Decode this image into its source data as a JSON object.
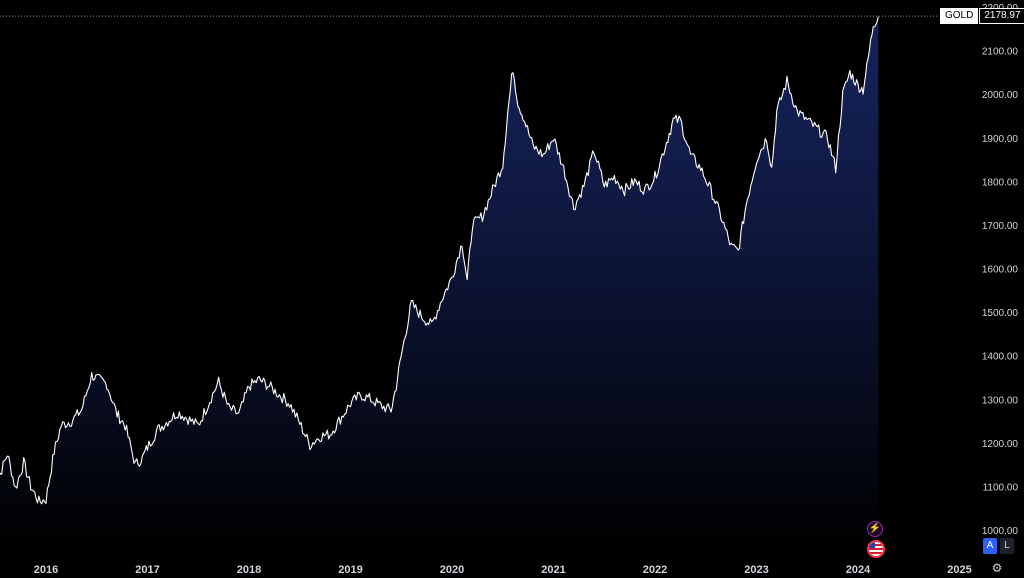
{
  "chart_data": {
    "type": "area",
    "symbol": "GOLD",
    "last_price": "2178.97",
    "y_ticks": [
      "2200.00",
      "2100.00",
      "2000.00",
      "1900.00",
      "1800.00",
      "1700.00",
      "1600.00",
      "1500.00",
      "1400.00",
      "1300.00",
      "1200.00",
      "1100.00",
      "1000.00"
    ],
    "x_ticks": [
      "2016",
      "2017",
      "2018",
      "2019",
      "2020",
      "2021",
      "2022",
      "2023",
      "2024",
      "2025"
    ],
    "ylim": [
      960,
      2200
    ],
    "grid": false,
    "line_color": "#ffffff",
    "fill_color": "#1a2a6e",
    "x": [
      2015.48,
      2015.55,
      2015.62,
      2015.7,
      2015.78,
      2015.85,
      2015.93,
      2016.0,
      2016.08,
      2016.15,
      2016.25,
      2016.35,
      2016.45,
      2016.52,
      2016.6,
      2016.7,
      2016.78,
      2016.88,
      2016.95,
      2017.0,
      2017.1,
      2017.2,
      2017.3,
      2017.4,
      2017.5,
      2017.6,
      2017.7,
      2017.8,
      2017.9,
      2018.0,
      2018.1,
      2018.2,
      2018.3,
      2018.4,
      2018.5,
      2018.6,
      2018.7,
      2018.8,
      2018.9,
      2019.0,
      2019.1,
      2019.2,
      2019.3,
      2019.4,
      2019.45,
      2019.5,
      2019.55,
      2019.6,
      2019.7,
      2019.8,
      2019.9,
      2020.0,
      2020.1,
      2020.15,
      2020.2,
      2020.3,
      2020.4,
      2020.5,
      2020.55,
      2020.6,
      2020.65,
      2020.7,
      2020.8,
      2020.9,
      2021.0,
      2021.1,
      2021.2,
      2021.3,
      2021.4,
      2021.5,
      2021.6,
      2021.7,
      2021.8,
      2021.9,
      2022.0,
      2022.1,
      2022.18,
      2022.25,
      2022.35,
      2022.45,
      2022.55,
      2022.65,
      2022.75,
      2022.82,
      2022.9,
      2023.0,
      2023.1,
      2023.15,
      2023.2,
      2023.3,
      2023.4,
      2023.5,
      2023.6,
      2023.7,
      2023.78,
      2023.85,
      2023.92,
      2024.0,
      2024.05,
      2024.1,
      2024.15,
      2024.2
    ],
    "y": [
      1095,
      1130,
      1175,
      1095,
      1155,
      1100,
      1065,
      1070,
      1180,
      1240,
      1250,
      1275,
      1355,
      1345,
      1335,
      1265,
      1240,
      1150,
      1165,
      1190,
      1230,
      1250,
      1270,
      1255,
      1240,
      1290,
      1340,
      1280,
      1265,
      1330,
      1345,
      1330,
      1310,
      1290,
      1245,
      1195,
      1215,
      1220,
      1255,
      1290,
      1310,
      1300,
      1285,
      1275,
      1330,
      1400,
      1460,
      1520,
      1490,
      1470,
      1530,
      1580,
      1660,
      1570,
      1700,
      1720,
      1780,
      1840,
      1960,
      2060,
      1980,
      1950,
      1880,
      1860,
      1900,
      1830,
      1740,
      1790,
      1870,
      1790,
      1810,
      1780,
      1800,
      1780,
      1810,
      1880,
      1940,
      1940,
      1860,
      1830,
      1780,
      1720,
      1650,
      1640,
      1750,
      1850,
      1900,
      1830,
      1960,
      2030,
      1960,
      1940,
      1920,
      1900,
      1830,
      2000,
      2050,
      2020,
      2010,
      2080,
      2160,
      2178
    ]
  },
  "events": {
    "bolt_icon": "lightning-icon",
    "flag_icon": "us-flag-icon"
  },
  "controls": {
    "auto_label": "A",
    "log_label": "L",
    "settings_icon": "gear-icon"
  }
}
